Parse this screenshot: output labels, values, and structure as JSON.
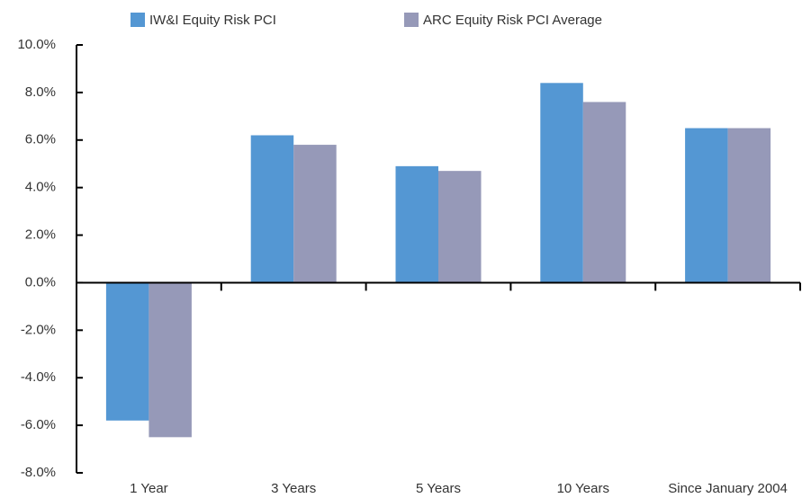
{
  "chart_data": {
    "type": "bar",
    "categories": [
      "1 Year",
      "3 Years",
      "5 Years",
      "10 Years",
      "Since January 2004"
    ],
    "series": [
      {
        "name": "IW&I Equity Risk PCI",
        "color": "#5497d3",
        "values": [
          -5.8,
          6.2,
          4.9,
          8.4,
          6.5
        ]
      },
      {
        "name": "ARC Equity Risk PCI Average",
        "color": "#9699b8",
        "values": [
          -6.5,
          5.8,
          4.7,
          7.6,
          6.5
        ]
      }
    ],
    "ylim": [
      -8,
      10
    ],
    "yticks": [
      {
        "value": -8,
        "label": "-8.0%"
      },
      {
        "value": -6,
        "label": "-6.0%"
      },
      {
        "value": -4,
        "label": "-4.0%"
      },
      {
        "value": -2,
        "label": "-2.0%"
      },
      {
        "value": 0,
        "label": "0.0%"
      },
      {
        "value": 2,
        "label": "2.0%"
      },
      {
        "value": 4,
        "label": "4.0%"
      },
      {
        "value": 6,
        "label": "6.0%"
      },
      {
        "value": 8,
        "label": "8.0%"
      },
      {
        "value": 10,
        "label": "10.0%"
      }
    ]
  }
}
